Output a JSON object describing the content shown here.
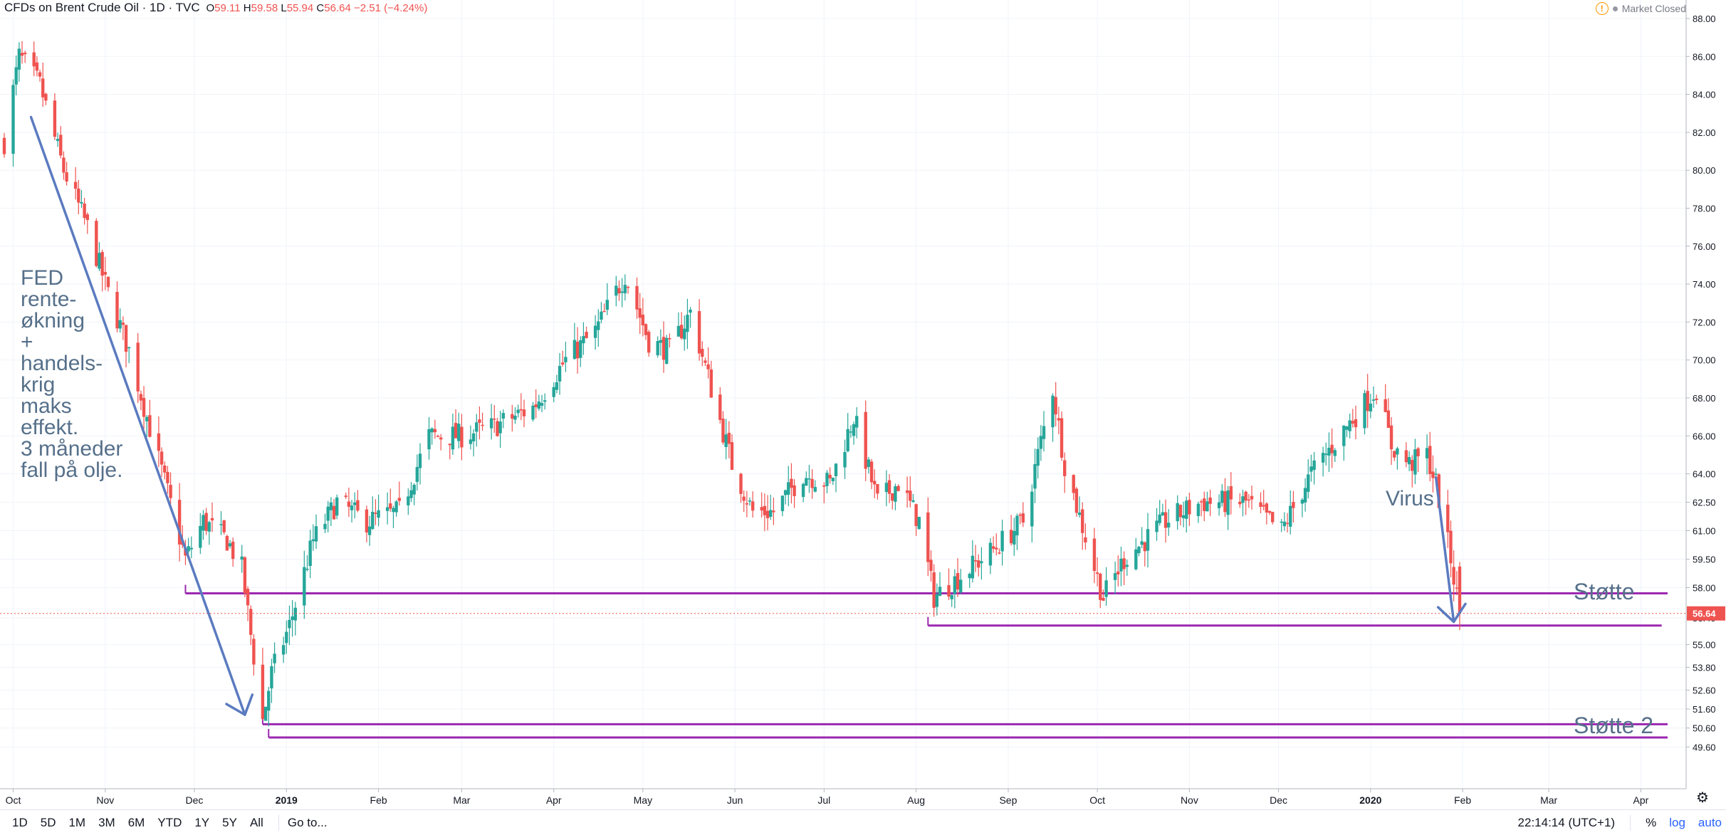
{
  "header": {
    "title": "CFDs on Brent Crude Oil · 1D · TVC",
    "open_label": "O",
    "open": "59.11",
    "high_label": "H",
    "high": "59.58",
    "low_label": "L",
    "low": "55.94",
    "close_label": "C",
    "close": "56.64",
    "change": "−2.51 (−4.24%)"
  },
  "status": {
    "market": "Market Closed",
    "warn_symbol": "!"
  },
  "bottom_bar": {
    "ranges": [
      "1D",
      "5D",
      "1M",
      "3M",
      "6M",
      "YTD",
      "1Y",
      "5Y",
      "All"
    ],
    "goto": "Go to...",
    "time": "22:14:14 (UTC+1)",
    "percent": "%",
    "log": "log",
    "auto": "auto"
  },
  "colors": {
    "up": "#26a69a",
    "down": "#ef5350",
    "support": "#9c27b0",
    "arrow": "#5b7bc0",
    "annotation": "#56708a"
  },
  "chart_data": {
    "type": "candlestick",
    "ylim": [
      48.6,
      88.0
    ],
    "y_ticks": [
      "49.60",
      "50.60",
      "51.60",
      "52.60",
      "53.80",
      "55.00",
      "56.40",
      "58.00",
      "59.50",
      "61.00",
      "62.50",
      "64.00",
      "66.00",
      "68.00",
      "70.00",
      "72.00",
      "74.00",
      "76.00",
      "78.00",
      "80.00",
      "82.00",
      "84.00",
      "86.00",
      "88.00"
    ],
    "x_ticks": [
      "Oct",
      "Nov",
      "Dec",
      "2019",
      "Feb",
      "Mar",
      "Apr",
      "May",
      "Jun",
      "Jul",
      "Aug",
      "Sep",
      "Oct",
      "Nov",
      "Dec",
      "2020",
      "Feb",
      "Mar",
      "Apr"
    ],
    "x_range": [
      "2018-09-28",
      "2020-04-10"
    ],
    "last_price": 56.64,
    "last_price_label": "56.64",
    "price_anchors": [
      [
        "2018-09-28",
        81.5
      ],
      [
        "2018-10-03",
        86.0
      ],
      [
        "2018-10-10",
        84.5
      ],
      [
        "2018-10-18",
        80.0
      ],
      [
        "2018-10-26",
        77.0
      ],
      [
        "2018-11-02",
        73.5
      ],
      [
        "2018-11-09",
        70.5
      ],
      [
        "2018-11-15",
        67.0
      ],
      [
        "2018-11-22",
        63.0
      ],
      [
        "2018-11-28",
        59.5
      ],
      [
        "2018-12-04",
        61.5
      ],
      [
        "2018-12-12",
        60.5
      ],
      [
        "2018-12-17",
        59.0
      ],
      [
        "2018-12-20",
        55.5
      ],
      [
        "2018-12-24",
        51.0
      ],
      [
        "2018-12-27",
        53.5
      ],
      [
        "2019-01-02",
        56.0
      ],
      [
        "2019-01-10",
        60.5
      ],
      [
        "2019-01-18",
        62.5
      ],
      [
        "2019-01-28",
        61.5
      ],
      [
        "2019-02-08",
        62.0
      ],
      [
        "2019-02-18",
        66.0
      ],
      [
        "2019-03-01",
        66.0
      ],
      [
        "2019-03-12",
        66.5
      ],
      [
        "2019-03-25",
        67.5
      ],
      [
        "2019-04-05",
        70.0
      ],
      [
        "2019-04-15",
        71.5
      ],
      [
        "2019-04-25",
        74.5
      ],
      [
        "2019-05-03",
        71.0
      ],
      [
        "2019-05-10",
        70.5
      ],
      [
        "2019-05-17",
        72.5
      ],
      [
        "2019-05-24",
        68.5
      ],
      [
        "2019-05-31",
        64.5
      ],
      [
        "2019-06-07",
        62.0
      ],
      [
        "2019-06-14",
        62.0
      ],
      [
        "2019-06-24",
        64.0
      ],
      [
        "2019-07-03",
        63.5
      ],
      [
        "2019-07-11",
        67.0
      ],
      [
        "2019-07-19",
        62.5
      ],
      [
        "2019-07-26",
        63.5
      ],
      [
        "2019-08-02",
        61.5
      ],
      [
        "2019-08-07",
        57.5
      ],
      [
        "2019-08-15",
        58.5
      ],
      [
        "2019-08-27",
        60.0
      ],
      [
        "2019-09-06",
        61.5
      ],
      [
        "2019-09-16",
        68.5
      ],
      [
        "2019-09-20",
        64.5
      ],
      [
        "2019-10-01",
        58.5
      ],
      [
        "2019-10-03",
        57.5
      ],
      [
        "2019-10-10",
        59.5
      ],
      [
        "2019-10-24",
        61.5
      ],
      [
        "2019-11-05",
        62.5
      ],
      [
        "2019-11-20",
        62.5
      ],
      [
        "2019-12-02",
        61.0
      ],
      [
        "2019-12-12",
        64.0
      ],
      [
        "2019-12-24",
        66.5
      ],
      [
        "2020-01-03",
        68.5
      ],
      [
        "2020-01-08",
        65.5
      ],
      [
        "2020-01-14",
        64.5
      ],
      [
        "2020-01-20",
        65.0
      ],
      [
        "2020-01-23",
        63.5
      ],
      [
        "2020-01-28",
        59.5
      ],
      [
        "2020-01-31",
        56.64
      ]
    ],
    "support_lines": [
      {
        "from": "2018-11-28",
        "to": "2020-04-10",
        "value": 57.7
      },
      {
        "from": "2019-08-05",
        "to": "2020-04-08",
        "value": 56.0
      },
      {
        "from": "2018-12-24",
        "to": "2020-04-10",
        "value": 50.8
      },
      {
        "from": "2018-12-26",
        "to": "2020-04-10",
        "value": 50.1
      }
    ],
    "annotations": [
      {
        "text": [
          "FED",
          "rente-",
          "økning",
          "+",
          "handels-",
          "krig",
          "maks",
          "effekt.",
          "",
          "3 måneder",
          "fall på olje."
        ]
      },
      {
        "text": [
          "Virus"
        ]
      },
      {
        "text": [
          "Støtte"
        ]
      },
      {
        "text": [
          "Støtte 2"
        ]
      }
    ]
  }
}
